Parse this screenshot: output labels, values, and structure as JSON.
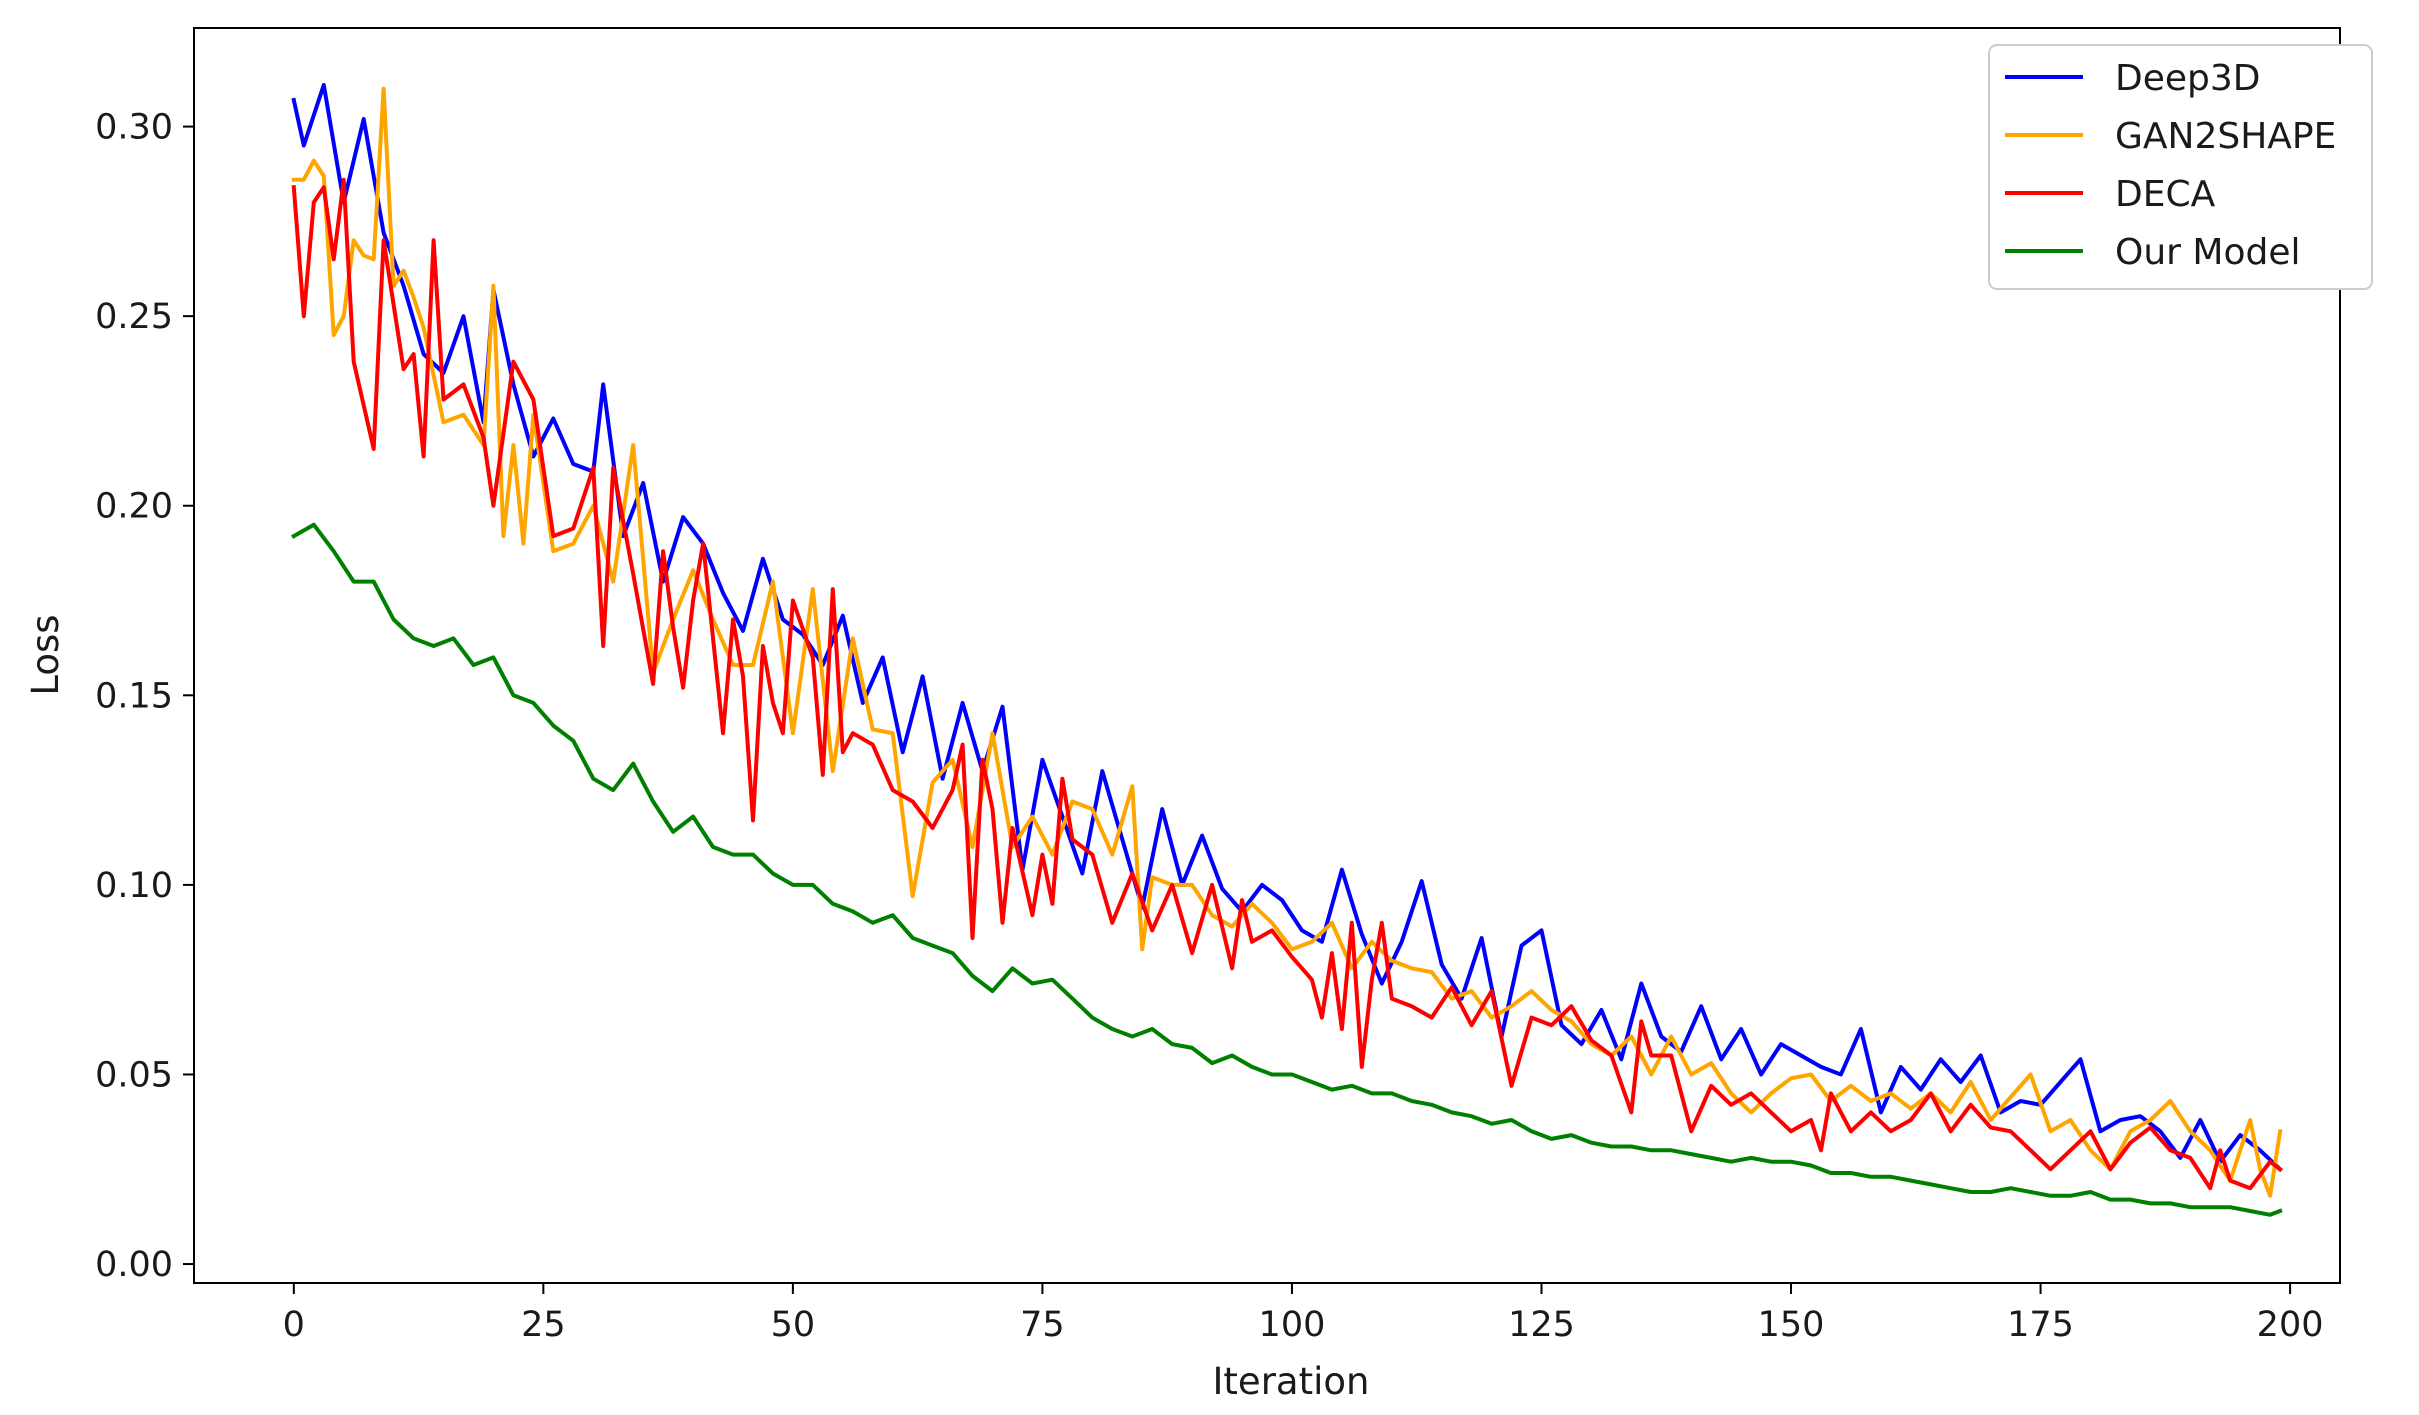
{
  "chart_data": {
    "type": "line",
    "title": "",
    "xlabel": "Iteration",
    "ylabel": "Loss",
    "xlim": [
      -10,
      205
    ],
    "ylim": [
      -0.005,
      0.326
    ],
    "xticks": [
      0,
      25,
      50,
      75,
      100,
      125,
      150,
      175,
      200
    ],
    "yticks": [
      0.0,
      0.05,
      0.1,
      0.15,
      0.2,
      0.25,
      0.3
    ],
    "xtick_labels": [
      "0",
      "25",
      "50",
      "75",
      "100",
      "125",
      "150",
      "175",
      "200"
    ],
    "ytick_labels": [
      "0.00",
      "0.05",
      "0.10",
      "0.15",
      "0.20",
      "0.25",
      "0.30"
    ],
    "grid": false,
    "legend_position": "top-right",
    "series": [
      {
        "name": "Deep3D",
        "color": "#0000ff",
        "x": [
          0,
          1,
          3,
          5,
          7,
          9,
          11,
          13,
          15,
          17,
          19,
          20,
          22,
          24,
          26,
          28,
          30,
          31,
          33,
          35,
          37,
          39,
          41,
          43,
          45,
          47,
          49,
          51,
          53,
          55,
          57,
          59,
          61,
          63,
          65,
          67,
          69,
          71,
          73,
          75,
          77,
          79,
          81,
          83,
          85,
          87,
          89,
          91,
          93,
          95,
          97,
          99,
          101,
          103,
          105,
          107,
          109,
          111,
          113,
          115,
          117,
          119,
          121,
          123,
          125,
          127,
          129,
          131,
          133,
          135,
          137,
          139,
          141,
          143,
          145,
          147,
          149,
          151,
          153,
          155,
          157,
          159,
          161,
          163,
          165,
          167,
          169,
          171,
          173,
          175,
          177,
          179,
          181,
          183,
          185,
          187,
          189,
          191,
          193,
          195,
          197,
          199
        ],
        "values": [
          0.307,
          0.295,
          0.311,
          0.28,
          0.302,
          0.272,
          0.258,
          0.24,
          0.235,
          0.25,
          0.222,
          0.257,
          0.232,
          0.213,
          0.223,
          0.211,
          0.209,
          0.232,
          0.192,
          0.206,
          0.18,
          0.197,
          0.19,
          0.177,
          0.167,
          0.186,
          0.17,
          0.166,
          0.158,
          0.171,
          0.148,
          0.16,
          0.135,
          0.155,
          0.128,
          0.148,
          0.13,
          0.147,
          0.104,
          0.133,
          0.118,
          0.103,
          0.13,
          0.112,
          0.094,
          0.12,
          0.1,
          0.113,
          0.099,
          0.093,
          0.1,
          0.096,
          0.088,
          0.085,
          0.104,
          0.087,
          0.074,
          0.085,
          0.101,
          0.079,
          0.07,
          0.086,
          0.06,
          0.084,
          0.088,
          0.063,
          0.058,
          0.067,
          0.054,
          0.074,
          0.06,
          0.056,
          0.068,
          0.054,
          0.062,
          0.05,
          0.058,
          0.055,
          0.052,
          0.05,
          0.062,
          0.04,
          0.052,
          0.046,
          0.054,
          0.048,
          0.055,
          0.04,
          0.043,
          0.042,
          0.048,
          0.054,
          0.035,
          0.038,
          0.039,
          0.035,
          0.028,
          0.038,
          0.027,
          0.034,
          0.03,
          0.025
        ]
      },
      {
        "name": "GAN2SHAPE",
        "color": "#ffa500",
        "x": [
          0,
          1,
          2,
          3,
          4,
          5,
          6,
          7,
          8,
          9,
          10,
          11,
          12,
          13,
          15,
          17,
          19,
          20,
          21,
          22,
          23,
          24,
          26,
          28,
          30,
          32,
          34,
          36,
          38,
          40,
          42,
          44,
          46,
          48,
          50,
          52,
          54,
          56,
          58,
          60,
          62,
          64,
          66,
          68,
          70,
          72,
          74,
          76,
          78,
          80,
          82,
          84,
          85,
          86,
          88,
          90,
          92,
          94,
          96,
          98,
          100,
          102,
          104,
          106,
          108,
          110,
          112,
          114,
          116,
          118,
          120,
          122,
          124,
          126,
          128,
          130,
          132,
          134,
          136,
          138,
          140,
          142,
          144,
          146,
          148,
          150,
          152,
          154,
          156,
          158,
          160,
          162,
          164,
          166,
          168,
          170,
          172,
          174,
          176,
          178,
          180,
          182,
          184,
          186,
          188,
          190,
          192,
          194,
          196,
          197,
          198,
          199
        ],
        "values": [
          0.286,
          0.286,
          0.291,
          0.287,
          0.245,
          0.25,
          0.27,
          0.266,
          0.265,
          0.31,
          0.258,
          0.262,
          0.255,
          0.247,
          0.222,
          0.224,
          0.216,
          0.258,
          0.192,
          0.216,
          0.19,
          0.224,
          0.188,
          0.19,
          0.2,
          0.18,
          0.216,
          0.156,
          0.17,
          0.183,
          0.17,
          0.158,
          0.158,
          0.18,
          0.14,
          0.178,
          0.13,
          0.165,
          0.141,
          0.14,
          0.097,
          0.127,
          0.133,
          0.11,
          0.14,
          0.11,
          0.118,
          0.108,
          0.122,
          0.12,
          0.108,
          0.126,
          0.083,
          0.102,
          0.1,
          0.1,
          0.092,
          0.089,
          0.095,
          0.09,
          0.083,
          0.085,
          0.09,
          0.078,
          0.085,
          0.08,
          0.078,
          0.077,
          0.07,
          0.072,
          0.065,
          0.068,
          0.072,
          0.067,
          0.064,
          0.058,
          0.055,
          0.06,
          0.05,
          0.06,
          0.05,
          0.053,
          0.045,
          0.04,
          0.045,
          0.049,
          0.05,
          0.043,
          0.047,
          0.043,
          0.045,
          0.041,
          0.045,
          0.04,
          0.048,
          0.038,
          0.044,
          0.05,
          0.035,
          0.038,
          0.03,
          0.025,
          0.035,
          0.038,
          0.043,
          0.035,
          0.03,
          0.022,
          0.038,
          0.025,
          0.018,
          0.035
        ]
      },
      {
        "name": "DECA",
        "color": "#ff0000",
        "x": [
          0,
          1,
          2,
          3,
          4,
          5,
          6,
          8,
          9,
          11,
          12,
          13,
          14,
          15,
          17,
          19,
          20,
          22,
          24,
          26,
          28,
          30,
          31,
          32,
          34,
          36,
          37,
          38,
          39,
          40,
          41,
          43,
          44,
          45,
          46,
          47,
          48,
          49,
          50,
          52,
          53,
          54,
          55,
          56,
          58,
          60,
          62,
          64,
          66,
          67,
          68,
          69,
          70,
          71,
          72,
          74,
          75,
          76,
          77,
          78,
          80,
          82,
          84,
          86,
          88,
          90,
          92,
          94,
          95,
          96,
          98,
          100,
          102,
          103,
          104,
          105,
          106,
          107,
          108,
          109,
          110,
          112,
          114,
          116,
          118,
          120,
          122,
          124,
          126,
          128,
          130,
          132,
          134,
          135,
          136,
          138,
          140,
          142,
          144,
          146,
          148,
          150,
          152,
          153,
          154,
          156,
          158,
          160,
          162,
          164,
          166,
          168,
          170,
          172,
          174,
          176,
          178,
          180,
          182,
          184,
          186,
          188,
          190,
          192,
          193,
          194,
          196,
          198,
          199
        ],
        "values": [
          0.284,
          0.25,
          0.28,
          0.284,
          0.265,
          0.286,
          0.238,
          0.215,
          0.27,
          0.236,
          0.24,
          0.213,
          0.27,
          0.228,
          0.232,
          0.218,
          0.2,
          0.238,
          0.228,
          0.192,
          0.194,
          0.21,
          0.163,
          0.21,
          0.182,
          0.153,
          0.188,
          0.168,
          0.152,
          0.175,
          0.19,
          0.14,
          0.17,
          0.155,
          0.117,
          0.163,
          0.148,
          0.14,
          0.175,
          0.16,
          0.129,
          0.178,
          0.135,
          0.14,
          0.137,
          0.125,
          0.122,
          0.115,
          0.125,
          0.137,
          0.086,
          0.133,
          0.12,
          0.09,
          0.115,
          0.092,
          0.108,
          0.095,
          0.128,
          0.112,
          0.108,
          0.09,
          0.103,
          0.088,
          0.1,
          0.082,
          0.1,
          0.078,
          0.096,
          0.085,
          0.088,
          0.081,
          0.075,
          0.065,
          0.082,
          0.062,
          0.09,
          0.052,
          0.075,
          0.09,
          0.07,
          0.068,
          0.065,
          0.073,
          0.063,
          0.072,
          0.047,
          0.065,
          0.063,
          0.068,
          0.059,
          0.055,
          0.04,
          0.064,
          0.055,
          0.055,
          0.035,
          0.047,
          0.042,
          0.045,
          0.04,
          0.035,
          0.038,
          0.03,
          0.045,
          0.035,
          0.04,
          0.035,
          0.038,
          0.045,
          0.035,
          0.042,
          0.036,
          0.035,
          0.03,
          0.025,
          0.03,
          0.035,
          0.025,
          0.032,
          0.036,
          0.03,
          0.028,
          0.02,
          0.03,
          0.022,
          0.02,
          0.027,
          0.025
        ]
      },
      {
        "name": "Our Model",
        "color": "#008000",
        "x": [
          0,
          2,
          4,
          6,
          8,
          10,
          12,
          14,
          16,
          18,
          20,
          22,
          24,
          26,
          28,
          30,
          32,
          34,
          36,
          38,
          40,
          42,
          44,
          46,
          48,
          50,
          52,
          54,
          56,
          58,
          60,
          62,
          64,
          66,
          68,
          70,
          72,
          74,
          76,
          78,
          80,
          82,
          84,
          86,
          88,
          90,
          92,
          94,
          96,
          98,
          100,
          102,
          104,
          106,
          108,
          110,
          112,
          114,
          116,
          118,
          120,
          122,
          124,
          126,
          128,
          130,
          132,
          134,
          136,
          138,
          140,
          142,
          144,
          146,
          148,
          150,
          152,
          154,
          156,
          158,
          160,
          162,
          164,
          166,
          168,
          170,
          172,
          174,
          176,
          178,
          180,
          182,
          184,
          186,
          188,
          190,
          192,
          194,
          196,
          198,
          199
        ],
        "values": [
          0.192,
          0.195,
          0.188,
          0.18,
          0.18,
          0.17,
          0.165,
          0.163,
          0.165,
          0.158,
          0.16,
          0.15,
          0.148,
          0.142,
          0.138,
          0.128,
          0.125,
          0.132,
          0.122,
          0.114,
          0.118,
          0.11,
          0.108,
          0.108,
          0.103,
          0.1,
          0.1,
          0.095,
          0.093,
          0.09,
          0.092,
          0.086,
          0.084,
          0.082,
          0.076,
          0.072,
          0.078,
          0.074,
          0.075,
          0.07,
          0.065,
          0.062,
          0.06,
          0.062,
          0.058,
          0.057,
          0.053,
          0.055,
          0.052,
          0.05,
          0.05,
          0.048,
          0.046,
          0.047,
          0.045,
          0.045,
          0.043,
          0.042,
          0.04,
          0.039,
          0.037,
          0.038,
          0.035,
          0.033,
          0.034,
          0.032,
          0.031,
          0.031,
          0.03,
          0.03,
          0.029,
          0.028,
          0.027,
          0.028,
          0.027,
          0.027,
          0.026,
          0.024,
          0.024,
          0.023,
          0.023,
          0.022,
          0.021,
          0.02,
          0.019,
          0.019,
          0.02,
          0.019,
          0.018,
          0.018,
          0.019,
          0.017,
          0.017,
          0.016,
          0.016,
          0.015,
          0.015,
          0.015,
          0.014,
          0.013,
          0.014
        ]
      }
    ]
  }
}
